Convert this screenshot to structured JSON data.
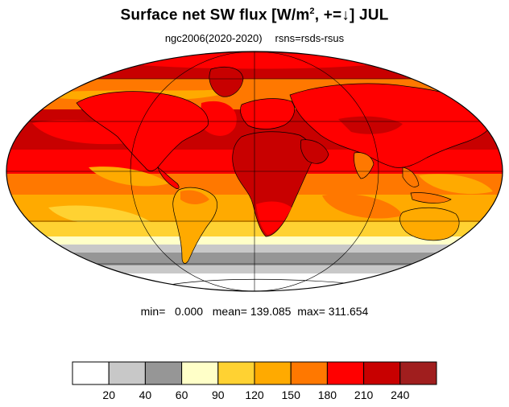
{
  "title": {
    "main": "Surface net SW flux [W/m",
    "exponent": "2",
    "rest": ", +=↓]  JUL"
  },
  "subtitle": {
    "left": "ngc2006(2020-2020)",
    "right": "rsns=rsds-rsus"
  },
  "stats": {
    "min_label": "min=",
    "min_value": "0.000",
    "mean_label": "mean=",
    "mean_value": "139.085",
    "max_label": "max=",
    "max_value": "311.654"
  },
  "colorbar": {
    "colors": [
      "#ffffff",
      "#c8c8c8",
      "#969696",
      "#ffffc8",
      "#ffd232",
      "#ffaa00",
      "#ff7800",
      "#ff0000",
      "#c80000",
      "#a01e1e"
    ],
    "ticks": [
      "20",
      "40",
      "60",
      "90",
      "120",
      "150",
      "180",
      "210",
      "240"
    ]
  },
  "map": {
    "projection": "mollweide",
    "palette": {
      "ocean_bright": "#ff0000",
      "ocean_mid": "#ff7800",
      "dark": "#c80000",
      "land_bright": "#ff0000",
      "desert_dark": "#c80000",
      "ice_low": "#c8c8c8",
      "antarctic": "#ffffff",
      "pale": "#ffffc8",
      "yellow": "#ffd232",
      "gold": "#ffaa00",
      "grey": "#969696",
      "coast": "#000000"
    }
  }
}
